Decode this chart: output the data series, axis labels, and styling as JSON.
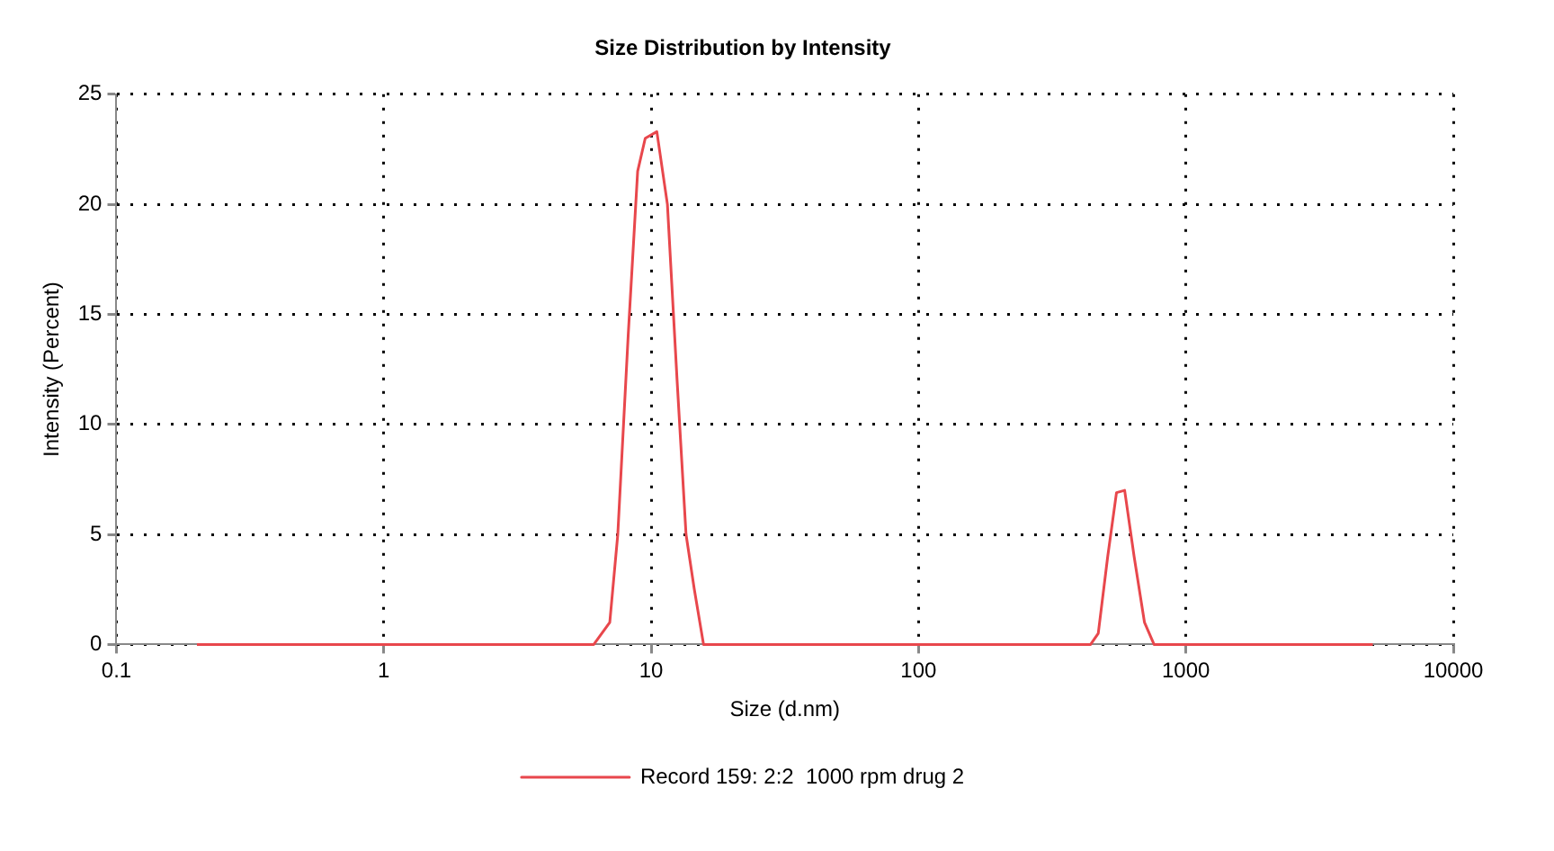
{
  "chart_data": {
    "type": "line",
    "title": "Size Distribution by Intensity",
    "xlabel": "Size (d.nm)",
    "ylabel": "Intensity (Percent)",
    "x": [
      0.2,
      6.1,
      7.0,
      7.5,
      8.2,
      8.9,
      9.5,
      10.5,
      11.5,
      12.5,
      13.5,
      14.5,
      15.7,
      440,
      470,
      510,
      550,
      590,
      640,
      700,
      760,
      5000
    ],
    "series": [
      {
        "name": "Record 159: 2:2  1000 rpm drug 2",
        "color": "#e8474c",
        "values": [
          0,
          0,
          1,
          5,
          14,
          21.5,
          23,
          23.3,
          20,
          12,
          5,
          2.5,
          0,
          0,
          0.5,
          4,
          6.9,
          7,
          4,
          1,
          0,
          0
        ]
      }
    ],
    "xlim": [
      0.1,
      10000
    ],
    "xticks": [
      0.1,
      1,
      10,
      100,
      1000,
      10000
    ],
    "ylim": [
      0,
      25
    ],
    "yticks": [
      0,
      5,
      10,
      15,
      20,
      25
    ],
    "log": "x",
    "grid": true,
    "legend": "bottom",
    "marker": "none",
    "line_style": "solid"
  }
}
